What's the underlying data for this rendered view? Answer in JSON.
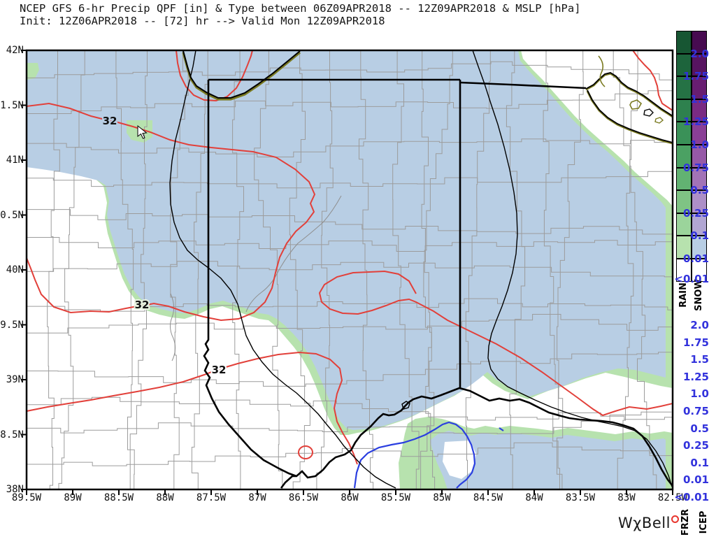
{
  "title": {
    "line1": "NCEP GFS 6-hr Precip QPF [in] & Type between 06Z09APR2018 -- 12Z09APR2018 & MSLP [hPa]",
    "line2": "Init: 12Z06APR2018 -- [72] hr --> Valid Mon 12Z09APR2018"
  },
  "map": {
    "y_axis": {
      "labels": [
        "42N",
        "41.5N",
        "41N",
        "40.5N",
        "40N",
        "39.5N",
        "39N",
        "38.5N",
        "38N"
      ]
    },
    "x_axis": {
      "labels": [
        "89.5W",
        "89W",
        "88.5W",
        "88W",
        "87.5W",
        "87W",
        "86.5W",
        "86W",
        "85.5W",
        "85W",
        "84.5W",
        "84W",
        "83.5W",
        "83W",
        "82.5W"
      ]
    },
    "contour_labels": [
      {
        "text": "32"
      },
      {
        "text": "32"
      },
      {
        "text": "32"
      }
    ],
    "colors": {
      "snow_fill": "#b8cee4",
      "rain_fill": "#b7e2ae",
      "isotherm": "#e2403a",
      "mslp": "#000000",
      "county": "#9c9c9c",
      "state": "#000000",
      "lake_outline": "#7a7a20",
      "blue_contour": "#2b3fe0",
      "white_fill": "#ffffff"
    }
  },
  "legend": {
    "value_color": "#3232dc",
    "top": {
      "values": [
        "2.0",
        "1.75",
        "1.5",
        "1.25",
        "1.0",
        "0.75",
        "0.5",
        "0.25",
        "0.1",
        "0.01",
        "<0.01"
      ],
      "columns": [
        {
          "label": "RAIN",
          "colors": [
            "#175633",
            "#1d643c",
            "#257245",
            "#2e814e",
            "#3a9158",
            "#4ba163",
            "#62b272",
            "#7fc384",
            "#9bd49b",
            "#b7e2ae",
            "#ffffff"
          ]
        },
        {
          "label": "SNOW",
          "colors": [
            "#470b50",
            "#571460",
            "#681e71",
            "#7a2b83",
            "#8a3f96",
            "#9659a7",
            "#a273b7",
            "#ad8fc7",
            "#b1a6d3",
            "#b8cee4",
            "#ffffff"
          ]
        }
      ]
    },
    "bottom": {
      "values": [
        "2.0",
        "1.75",
        "1.5",
        "1.25",
        "1.0",
        "0.75",
        "0.5",
        "0.25",
        "0.1",
        "0.01",
        "<0.01"
      ],
      "columns": [
        {
          "label": "FRZR"
        },
        {
          "label": "ICEP"
        }
      ]
    }
  },
  "logo": {
    "w": "W",
    "chi": "χ",
    "bell": "Bell"
  }
}
